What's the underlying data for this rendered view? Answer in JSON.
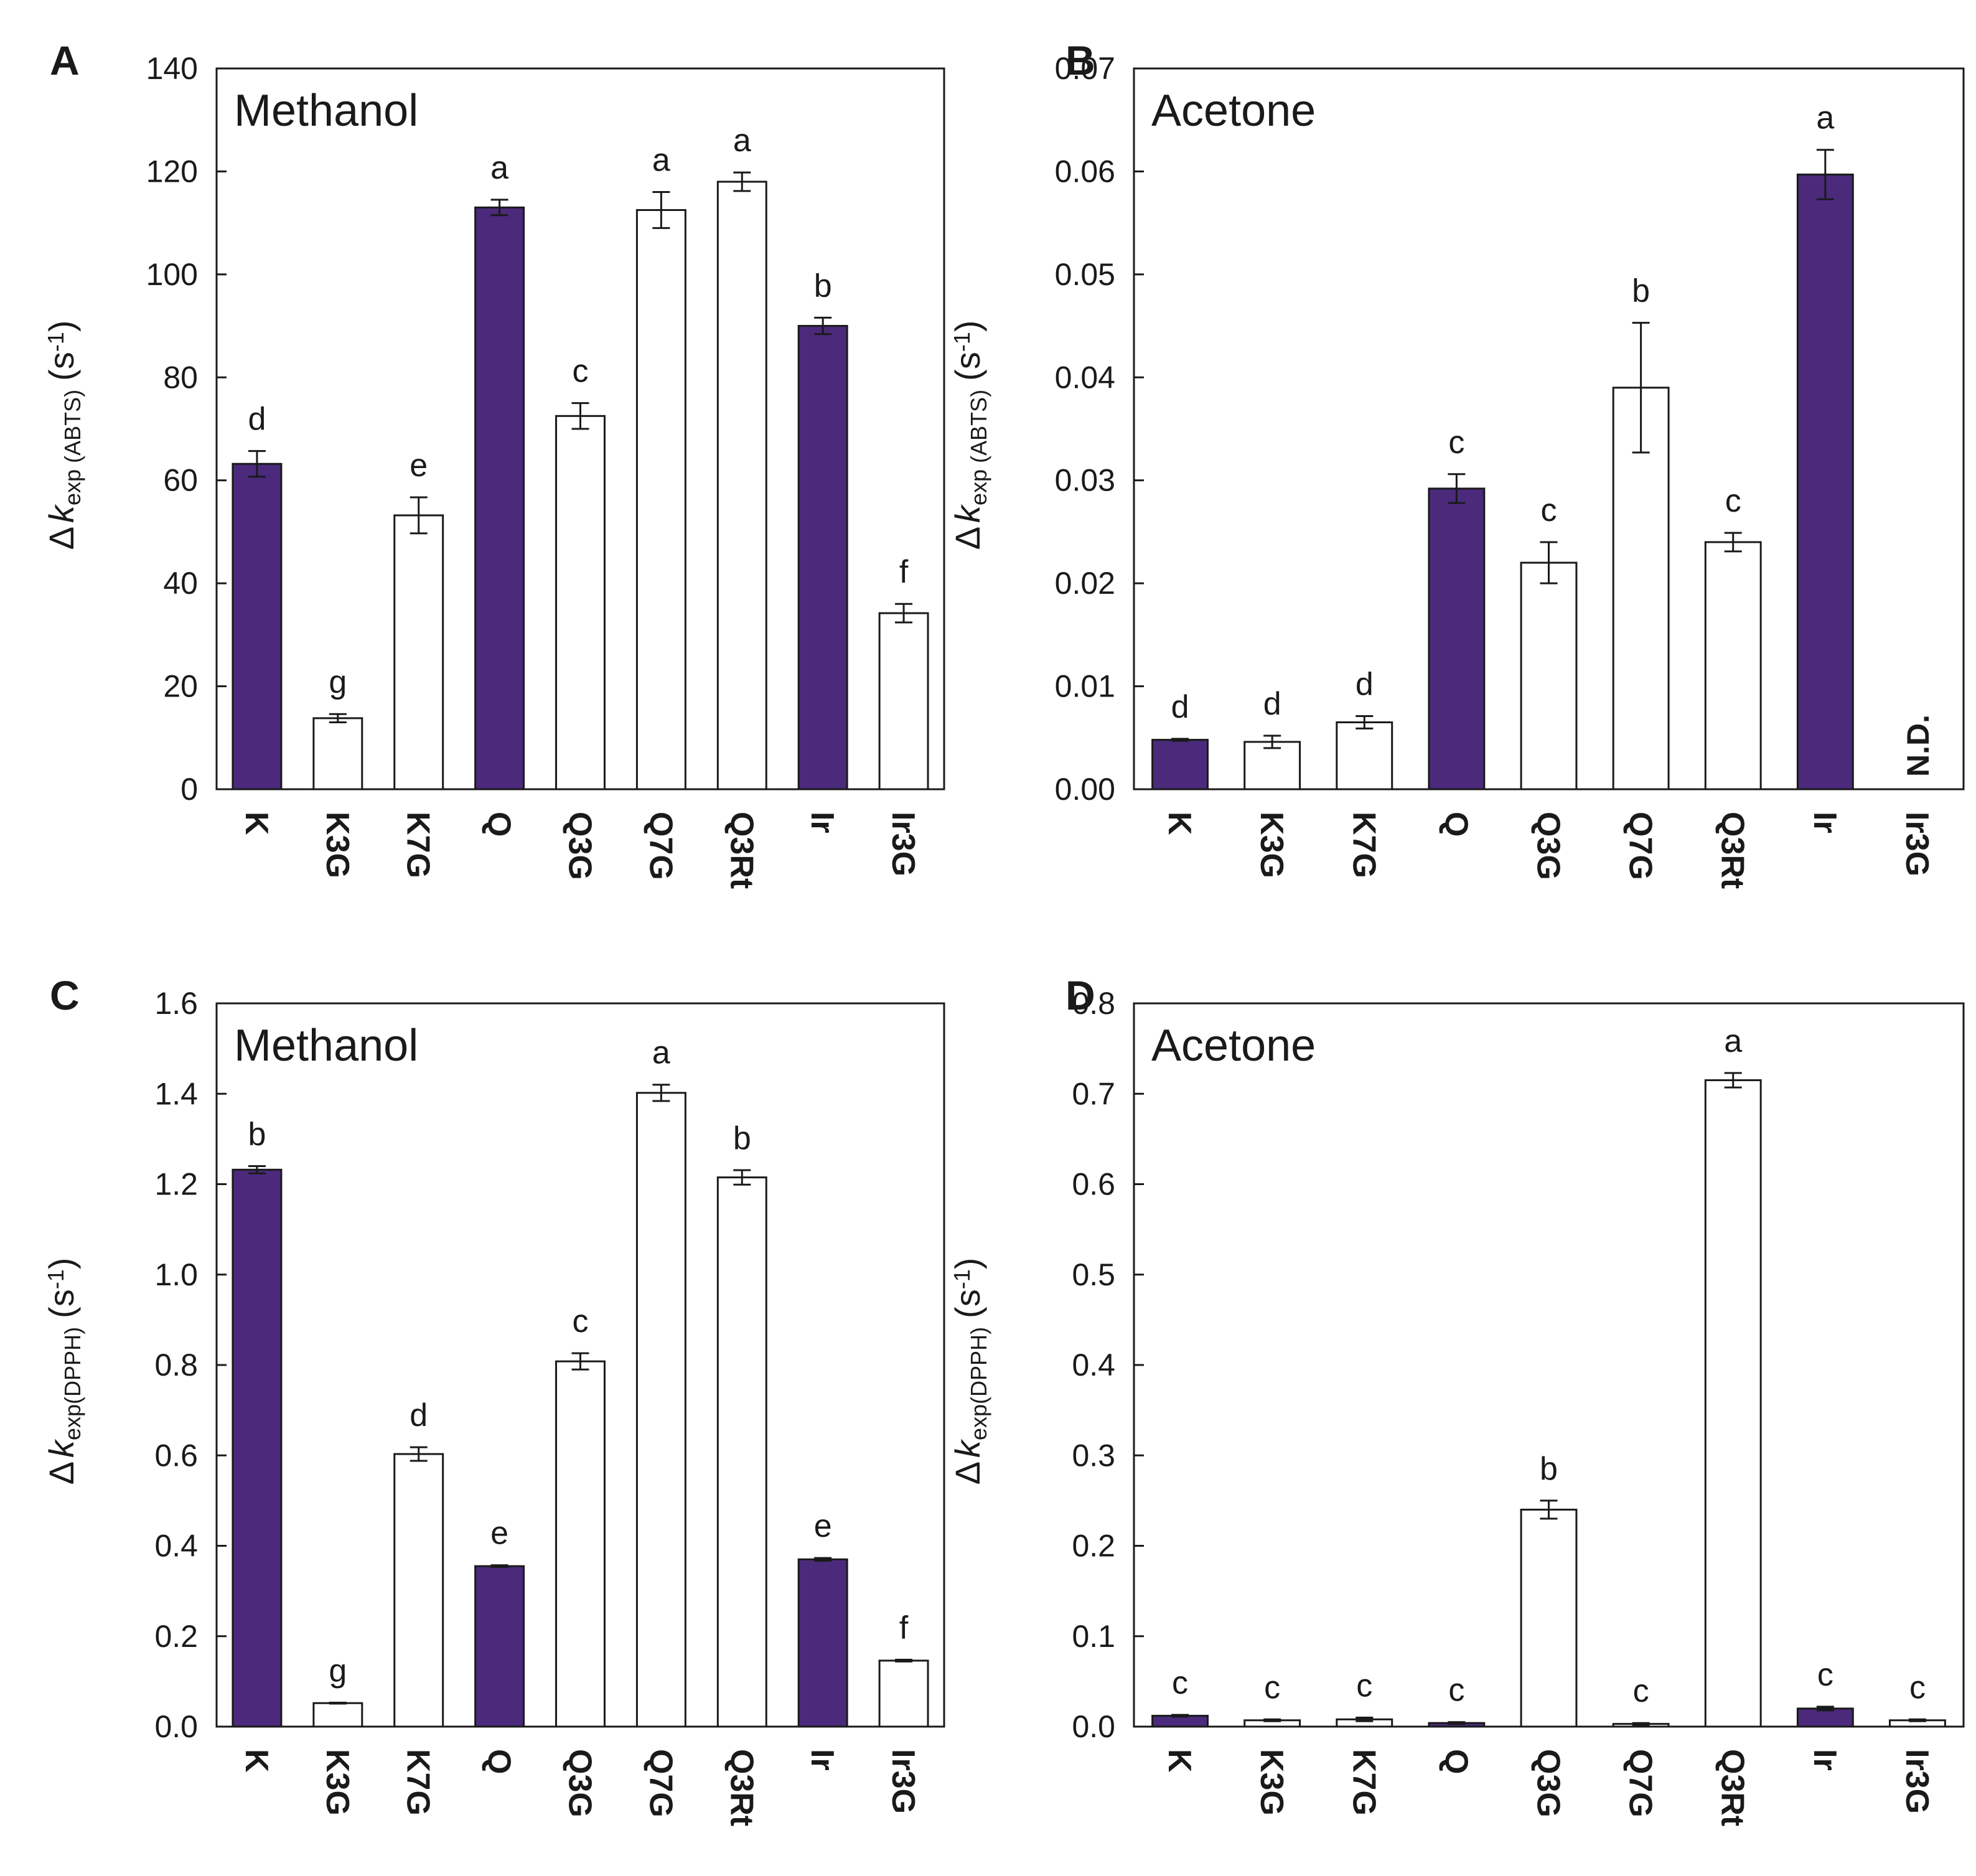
{
  "colors": {
    "filled": "#4b2a7c",
    "open": "#ffffff",
    "stroke": "#1a1a1a"
  },
  "chart_data": [
    {
      "type": "bar",
      "panel_letter": "A",
      "title": "Methanol",
      "ylabel": {
        "delta": "Δ",
        "k": "k",
        "sub": "exp (ABTS)",
        "unit_open": "(s",
        "unit_exp": "-1",
        "unit_close": ")"
      },
      "ylim": [
        0,
        140
      ],
      "yticks": [
        "0",
        "20",
        "40",
        "60",
        "80",
        "100",
        "120",
        "140"
      ],
      "categories": [
        "K",
        "K3G",
        "K7G",
        "Q",
        "Q3G",
        "Q7G",
        "Q3Rt",
        "Ir",
        "Ir3G"
      ],
      "values": [
        63.2,
        13.8,
        53.2,
        113.0,
        72.5,
        112.5,
        118.0,
        90.0,
        34.2
      ],
      "errors": [
        2.5,
        0.8,
        3.5,
        1.5,
        2.5,
        3.5,
        1.8,
        1.6,
        1.8
      ],
      "filled": [
        true,
        false,
        false,
        true,
        false,
        false,
        false,
        true,
        false
      ],
      "letters": [
        "d",
        "g",
        "e",
        "a",
        "c",
        "a",
        "a",
        "b",
        "f"
      ],
      "nd_label": ""
    },
    {
      "type": "bar",
      "panel_letter": "B",
      "title": "Acetone",
      "ylabel": {
        "delta": "Δ",
        "k": "k",
        "sub": "exp (ABTS)",
        "unit_open": "(s",
        "unit_exp": "-1",
        "unit_close": ")"
      },
      "ylim": [
        0,
        0.07
      ],
      "yticks": [
        "0.00",
        "0.01",
        "0.02",
        "0.03",
        "0.04",
        "0.05",
        "0.06",
        "0.07"
      ],
      "categories": [
        "K",
        "K3G",
        "K7G",
        "Q",
        "Q3G",
        "Q7G",
        "Q3Rt",
        "Ir",
        "Ir3G"
      ],
      "values": [
        0.0048,
        0.0046,
        0.0065,
        0.0292,
        0.022,
        0.039,
        0.024,
        0.0597,
        null
      ],
      "errors": [
        0.0001,
        0.0006,
        0.0006,
        0.0014,
        0.002,
        0.0063,
        0.0009,
        0.0024,
        null
      ],
      "filled": [
        true,
        false,
        false,
        true,
        false,
        false,
        false,
        true,
        false
      ],
      "letters": [
        "d",
        "d",
        "d",
        "c",
        "c",
        "b",
        "c",
        "a",
        ""
      ],
      "nd_label": "N.D."
    },
    {
      "type": "bar",
      "panel_letter": "C",
      "title": "Methanol",
      "ylabel": {
        "delta": "Δ",
        "k": "k",
        "sub": "exp(DPPH)",
        "unit_open": "(s",
        "unit_exp": "-1",
        "unit_close": ")"
      },
      "ylim": [
        0,
        1.6
      ],
      "yticks": [
        "0.0",
        "0.2",
        "0.4",
        "0.6",
        "0.8",
        "1.0",
        "1.2",
        "1.4",
        "1.6"
      ],
      "categories": [
        "K",
        "K3G",
        "K7G",
        "Q",
        "Q3G",
        "Q7G",
        "Q3Rt",
        "Ir",
        "Ir3G"
      ],
      "values": [
        1.232,
        0.052,
        0.603,
        0.355,
        0.808,
        1.402,
        1.215,
        0.37,
        0.146
      ],
      "errors": [
        0.008,
        0.001,
        0.015,
        0.002,
        0.018,
        0.018,
        0.016,
        0.003,
        0.002
      ],
      "filled": [
        true,
        false,
        false,
        true,
        false,
        false,
        false,
        true,
        false
      ],
      "letters": [
        "b",
        "g",
        "d",
        "e",
        "c",
        "a",
        "b",
        "e",
        "f"
      ],
      "nd_label": ""
    },
    {
      "type": "bar",
      "panel_letter": "D",
      "title": "Acetone",
      "ylabel": {
        "delta": "Δ",
        "k": "k",
        "sub": "exp(DPPH)",
        "unit_open": "(s",
        "unit_exp": "-1",
        "unit_close": ")"
      },
      "ylim": [
        0,
        0.8
      ],
      "yticks": [
        "0.0",
        "0.1",
        "0.2",
        "0.3",
        "0.4",
        "0.5",
        "0.6",
        "0.7",
        "0.8"
      ],
      "categories": [
        "K",
        "K3G",
        "K7G",
        "Q",
        "Q3G",
        "Q7G",
        "Q3Rt",
        "Ir",
        "Ir3G"
      ],
      "values": [
        0.012,
        0.007,
        0.008,
        0.004,
        0.24,
        0.003,
        0.715,
        0.02,
        0.007
      ],
      "errors": [
        0.001,
        0.001,
        0.002,
        0.001,
        0.01,
        0.001,
        0.008,
        0.002,
        0.001
      ],
      "filled": [
        true,
        false,
        false,
        true,
        false,
        false,
        false,
        true,
        false
      ],
      "letters": [
        "c",
        "c",
        "c",
        "c",
        "b",
        "c",
        "a",
        "c",
        "c"
      ],
      "nd_label": ""
    }
  ]
}
